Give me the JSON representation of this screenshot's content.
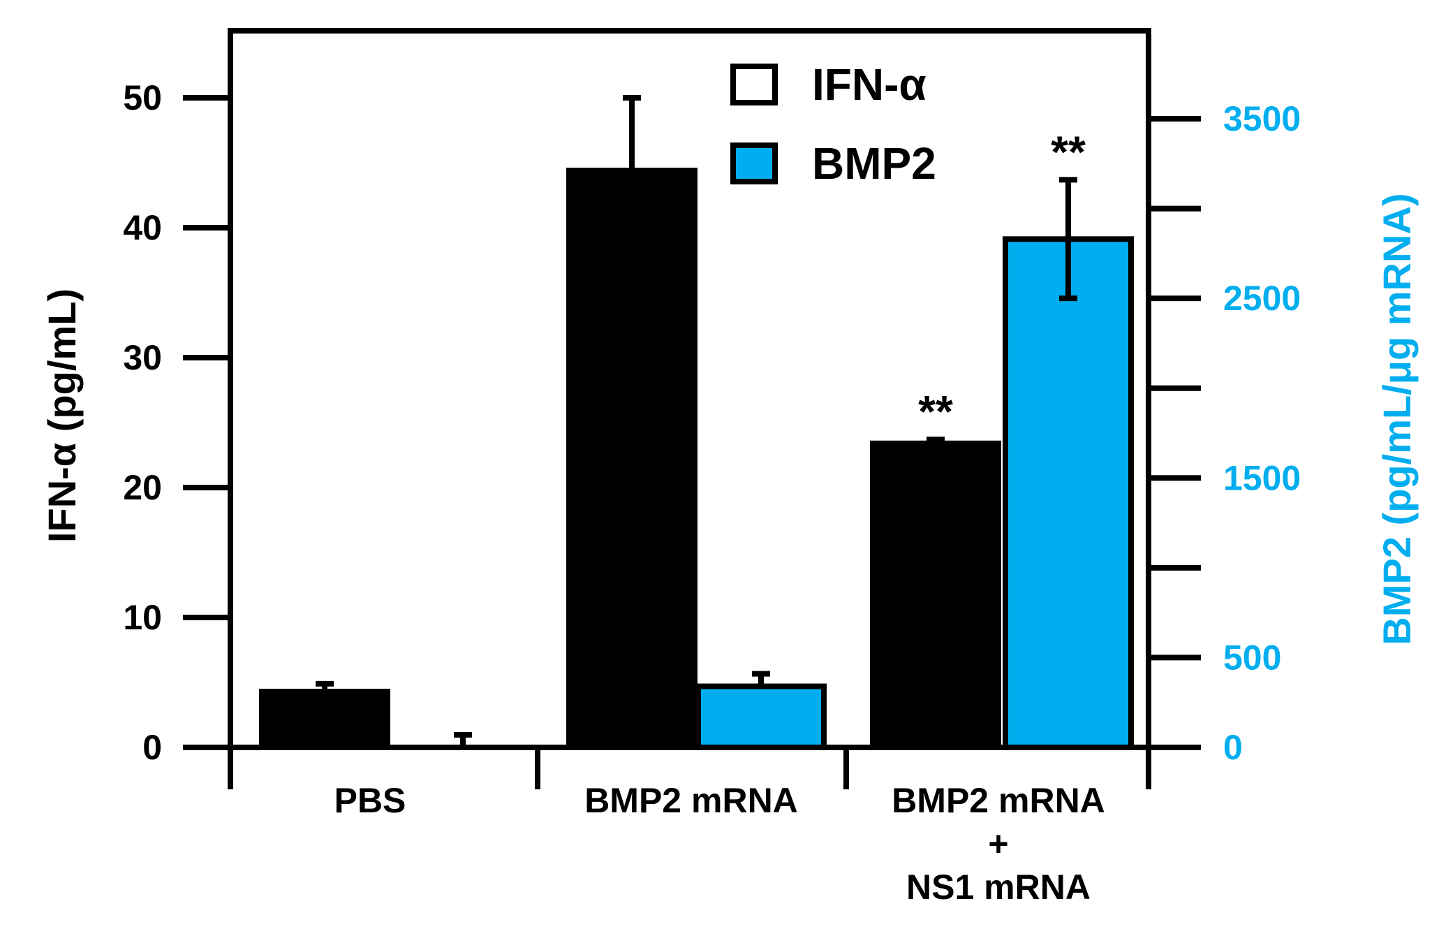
{
  "chart_data": {
    "type": "bar",
    "categories": [
      [
        "PBS"
      ],
      [
        "BMP2 mRNA"
      ],
      [
        "BMP2 mRNA",
        "+",
        "NS1 mRNA"
      ]
    ],
    "series": [
      {
        "name": "IFN-α",
        "axis": "left",
        "color": "#000000",
        "values": [
          4.3,
          44.4,
          23.4
        ],
        "errors": [
          0.6,
          5.6,
          0.3
        ],
        "annotations": [
          "",
          "",
          "**"
        ]
      },
      {
        "name": "BMP2",
        "axis": "right",
        "color": "#00AEEF",
        "values": [
          0,
          340,
          2830
        ],
        "errors": [
          70,
          70,
          330
        ],
        "annotations": [
          "",
          "",
          "**"
        ]
      }
    ],
    "ylabel": "IFN-α (pg/mL)",
    "ylim": [
      0,
      55
    ],
    "yticks": [
      0,
      10,
      20,
      30,
      40,
      50
    ],
    "y2label": "BMP2 (pg/mL/μg mRNA)",
    "y2lim": [
      0,
      3500
    ],
    "y2ticks": [
      0,
      500,
      1500,
      2500,
      3500
    ],
    "y2minor_ticks": [
      1000,
      2000,
      3000
    ],
    "y2color": "#00AEEF",
    "legend_position": "top-center",
    "grid": false
  }
}
